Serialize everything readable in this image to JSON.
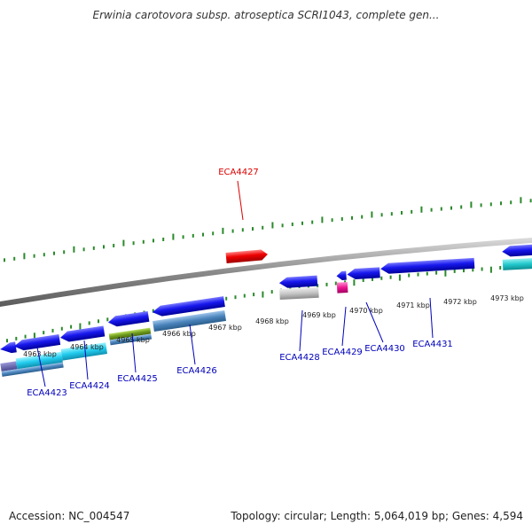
{
  "title": "Erwinia carotovora subsp. atroseptica SCRI1043, complete gen...",
  "footer": {
    "accession": "Accession: NC_004547",
    "summary": "Topology: circular; Length: 5,064,019 bp; Genes: 4,594"
  },
  "colors": {
    "backbone": "#8a8a8a",
    "tick": "#2a8a2a",
    "label_forward": "#dd0000",
    "label_reverse": "#0000bb",
    "kbp_text": "#222222"
  },
  "kbp_labels": [
    "4963 kbp",
    "4964 kbp",
    "4965 kbp",
    "4966 kbp",
    "4967 kbp",
    "4968 kbp",
    "4969 kbp",
    "4970 kbp",
    "4971 kbp",
    "4972 kbp",
    "4973 kbp"
  ],
  "gene_labels": [
    {
      "text": "ECA4427",
      "strand": "forward"
    },
    {
      "text": "ECA4423",
      "strand": "reverse"
    },
    {
      "text": "ECA4424",
      "strand": "reverse"
    },
    {
      "text": "ECA4425",
      "strand": "reverse"
    },
    {
      "text": "ECA4426",
      "strand": "reverse"
    },
    {
      "text": "ECA4428",
      "strand": "reverse"
    },
    {
      "text": "ECA4429",
      "strand": "reverse"
    },
    {
      "text": "ECA4430",
      "strand": "reverse"
    },
    {
      "text": "ECA4431",
      "strand": "reverse"
    }
  ]
}
